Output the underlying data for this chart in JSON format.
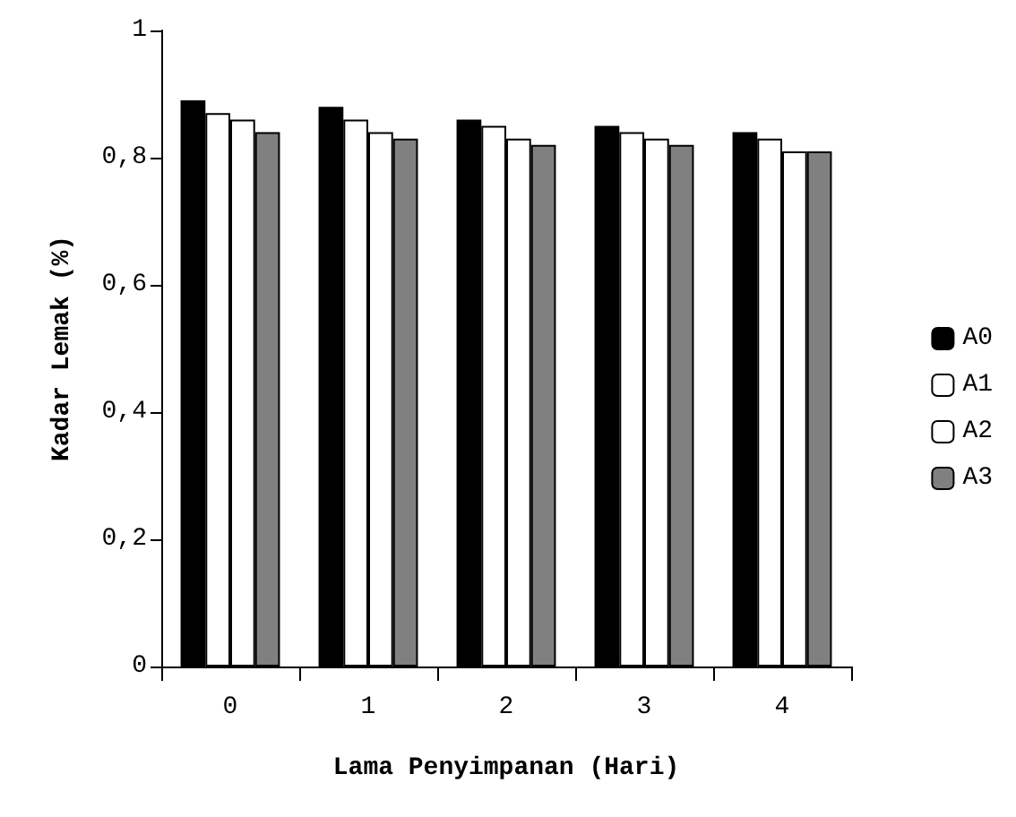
{
  "chart_data": {
    "type": "bar",
    "xlabel": "Lama Penyimpanan (Hari)",
    "ylabel": "Kadar Lemak (%)",
    "categories": [
      "0",
      "1",
      "2",
      "3",
      "4"
    ],
    "series": [
      {
        "name": "A0",
        "color": "#000000",
        "values": [
          0.89,
          0.88,
          0.86,
          0.85,
          0.84
        ]
      },
      {
        "name": "A1",
        "color": "#ffffff",
        "values": [
          0.87,
          0.86,
          0.85,
          0.84,
          0.83
        ]
      },
      {
        "name": "A2",
        "color": "#ffffff",
        "values": [
          0.86,
          0.84,
          0.83,
          0.83,
          0.81
        ]
      },
      {
        "name": "A3",
        "color": "#808080",
        "values": [
          0.84,
          0.83,
          0.82,
          0.82,
          0.81
        ]
      }
    ],
    "ylim": [
      0,
      1
    ],
    "yticks": [
      0,
      {
        "value": 0.2,
        "label": "0,2"
      },
      {
        "value": 0.4,
        "label": "0,4"
      },
      {
        "value": 0.6,
        "label": "0,6"
      },
      {
        "value": 0.8,
        "label": "0,8"
      },
      1
    ],
    "grid": false,
    "legend": "right"
  }
}
